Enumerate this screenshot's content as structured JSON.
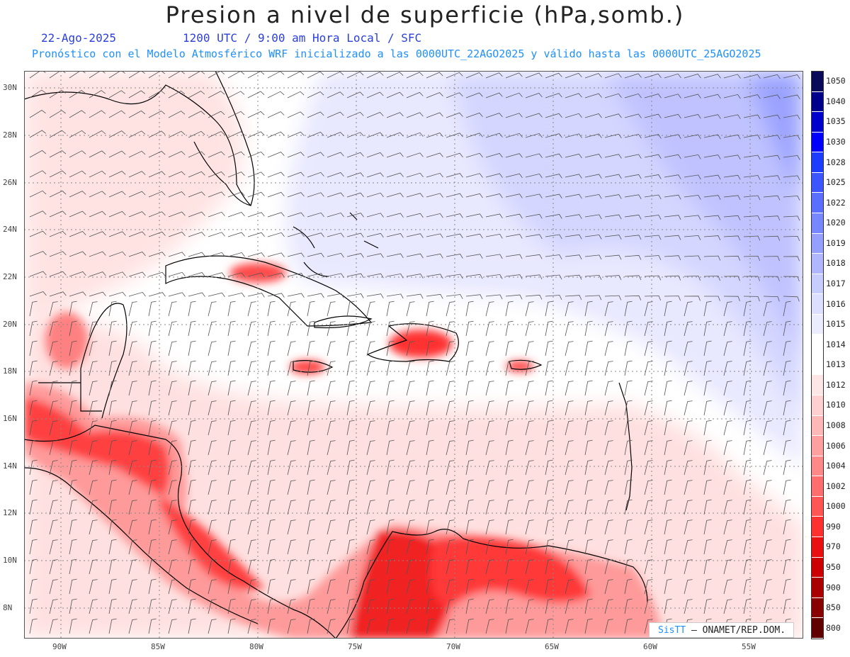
{
  "title": "Presion a nivel de superficie (hPa,somb.)",
  "date": "22-Ago-2025",
  "valid_time": "1200 UTC / 9:00 am Hora Local / SFC",
  "forecast_note": "Pronóstico con el Modelo Atmosférico WRF inicializado a las 0000UTC_22AGO2025 y válido hasta las  0000UTC_25AGO2025",
  "credit_brand": "SisTT",
  "credit_org": "– ONAMET/REP.DOM.",
  "lat_labels": [
    "30N",
    "28N",
    "26N",
    "24N",
    "22N",
    "20N",
    "18N",
    "16N",
    "14N",
    "12N",
    "10N",
    "8N"
  ],
  "lon_labels": [
    "90W",
    "85W",
    "80W",
    "75W",
    "70W",
    "65W",
    "60W",
    "55W"
  ],
  "colorbar": {
    "labels": [
      "1050",
      "1040",
      "1035",
      "1030",
      "1028",
      "1025",
      "1022",
      "1020",
      "1019",
      "1018",
      "1017",
      "1016",
      "1015",
      "1014",
      "1013",
      "1012",
      "1010",
      "1008",
      "1006",
      "1004",
      "1002",
      "1000",
      "990",
      "970",
      "950",
      "900",
      "850",
      "800"
    ],
    "colors": [
      "#0a0a5a",
      "#00008b",
      "#0000cd",
      "#0000ff",
      "#1e3cff",
      "#3c55ff",
      "#5a6eff",
      "#7886ff",
      "#959fff",
      "#b0b7ff",
      "#c8cdff",
      "#dcdfff",
      "#ececff",
      "#ffffff",
      "#ffffff",
      "#ffe6e6",
      "#ffd0d0",
      "#ffb8b8",
      "#ffa0a0",
      "#ff8888",
      "#ff6e6e",
      "#ff5555",
      "#ff3030",
      "#e81010",
      "#cc0000",
      "#aa0000",
      "#880000",
      "#600000"
    ]
  }
}
